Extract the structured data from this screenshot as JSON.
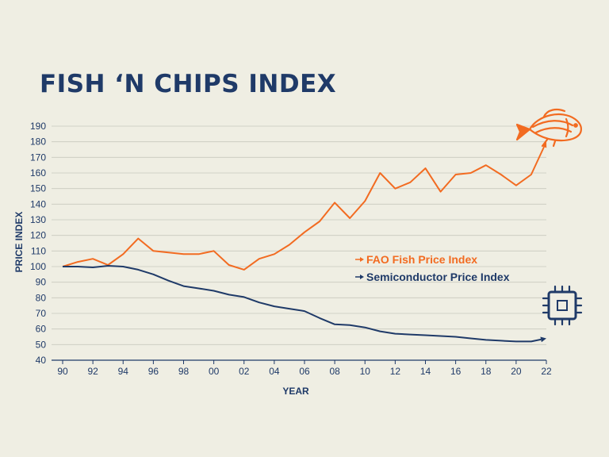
{
  "title": "FISH ‘N CHIPS INDEX",
  "colors": {
    "background": "#efeee3",
    "navy": "#1f3a68",
    "orange": "#f26b21",
    "grid": "#c9c8be"
  },
  "icons": {
    "fish": "fish-icon",
    "chip": "microchip-icon"
  },
  "chart_data": {
    "type": "line",
    "title": "FISH ‘N CHIPS INDEX",
    "xlabel": "YEAR",
    "ylabel": "PRICE INDEX",
    "x": [
      1990,
      1991,
      1992,
      1993,
      1994,
      1995,
      1996,
      1997,
      1998,
      1999,
      2000,
      2001,
      2002,
      2003,
      2004,
      2005,
      2006,
      2007,
      2008,
      2009,
      2010,
      2011,
      2012,
      2013,
      2014,
      2015,
      2016,
      2017,
      2018,
      2019,
      2020,
      2021,
      2022
    ],
    "xlim": [
      1990,
      2022
    ],
    "ylim": [
      40,
      190
    ],
    "x_tick_values": [
      1990,
      1992,
      1994,
      1996,
      1998,
      2000,
      2002,
      2004,
      2006,
      2008,
      2010,
      2012,
      2014,
      2016,
      2018,
      2020,
      2022
    ],
    "x_tick_labels": [
      "90",
      "92",
      "94",
      "96",
      "98",
      "00",
      "02",
      "04",
      "06",
      "08",
      "10",
      "12",
      "14",
      "16",
      "18",
      "20",
      "22"
    ],
    "y_ticks": [
      40,
      50,
      60,
      70,
      80,
      90,
      100,
      110,
      120,
      130,
      140,
      150,
      160,
      170,
      180,
      190
    ],
    "grid": true,
    "legend_position": "right",
    "series": [
      {
        "name": "FAO Fish Price Index",
        "color": "#f26b21",
        "values": [
          100,
          103,
          105,
          101,
          108,
          118,
          110,
          109,
          108,
          108,
          110,
          101,
          98,
          105,
          108,
          114,
          122,
          129,
          141,
          131,
          142,
          160,
          150,
          154,
          163,
          148,
          159,
          160,
          165,
          159,
          152,
          159,
          180
        ]
      },
      {
        "name": "Semiconductor Price Index",
        "color": "#1f3a68",
        "values": [
          100,
          100,
          99.5,
          100.5,
          100,
          98,
          95,
          91,
          87.5,
          86,
          84.5,
          82,
          80.5,
          77,
          74.5,
          73,
          71.5,
          67,
          63,
          62.5,
          61,
          58.5,
          57,
          56.5,
          56,
          55.5,
          55,
          54,
          53,
          52.5,
          52,
          52,
          54
        ]
      }
    ]
  }
}
